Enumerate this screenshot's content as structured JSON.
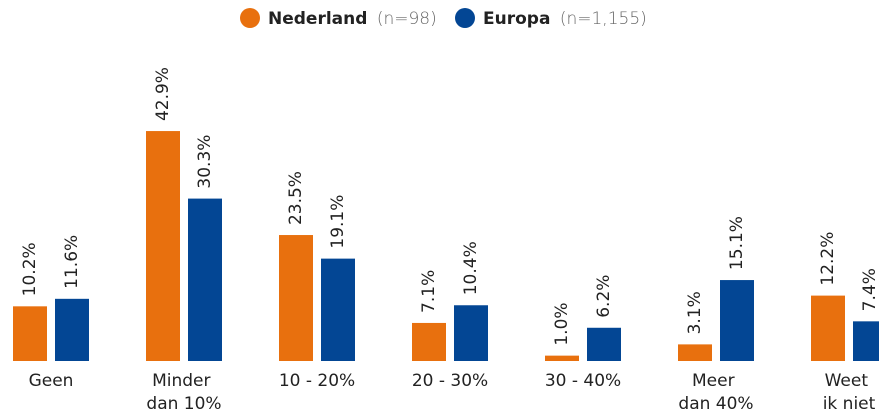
{
  "chart_data": {
    "type": "bar",
    "categories": [
      "Geen",
      "Minder dan 10%",
      "10 - 20%",
      "20 - 30%",
      "30 - 40%",
      "Meer dan 40%",
      "Weet ik niet"
    ],
    "series": [
      {
        "name": "Nederland",
        "sample_label": "(n=98)",
        "color": "#e8700e",
        "values": [
          10.2,
          42.9,
          23.5,
          7.1,
          1.0,
          3.1,
          12.2
        ],
        "value_labels": [
          "10.2%",
          "42.9%",
          "23.5%",
          "7.1%",
          "1.0%",
          "3.1%",
          "12.2%"
        ]
      },
      {
        "name": "Europa",
        "sample_label": "(n=1,155)",
        "color": "#034694",
        "values": [
          11.6,
          30.3,
          19.1,
          10.4,
          6.2,
          15.1,
          7.4
        ],
        "value_labels": [
          "11.6%",
          "30.3%",
          "19.1%",
          "10.4%",
          "6.2%",
          "15.1%",
          "7.4%"
        ]
      }
    ]
  }
}
